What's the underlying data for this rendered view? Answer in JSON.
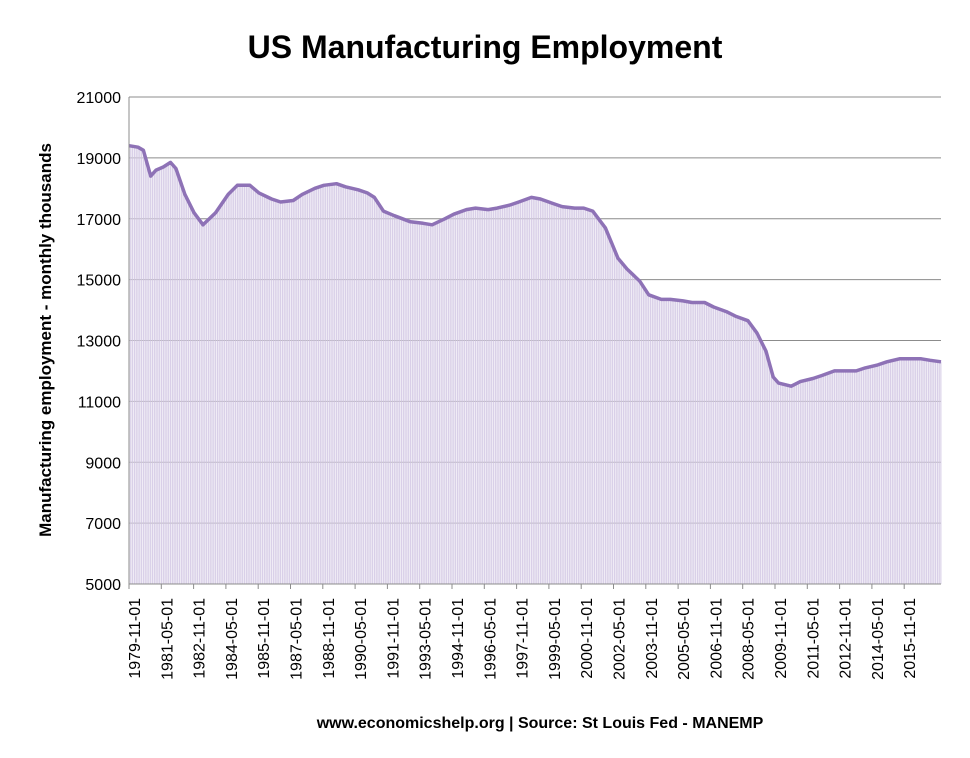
{
  "chart_data": {
    "type": "area",
    "title": "US Manufacturing Employment",
    "xlabel": "www.economicshelp.org | Source: St Louis Fed - MANEMP",
    "ylabel": "Manufacturing employment - monthly thousands",
    "ylim": [
      5000,
      21000
    ],
    "y_ticks": [
      "21000",
      "19000",
      "17000",
      "15000",
      "13000",
      "11000",
      "9000",
      "7000",
      "5000"
    ],
    "x_ticks": [
      "1979-11-01",
      "1981-05-01",
      "1982-11-01",
      "1984-05-01",
      "1985-11-01",
      "1987-05-01",
      "1988-11-01",
      "1990-05-01",
      "1991-11-01",
      "1993-05-01",
      "1994-11-01",
      "1996-05-01",
      "1997-11-01",
      "1999-05-01",
      "2000-11-01",
      "2002-05-01",
      "2003-11-01",
      "2005-05-01",
      "2006-11-01",
      "2008-05-01",
      "2009-11-01",
      "2011-05-01",
      "2012-11-01",
      "2014-05-01",
      "2015-11-01"
    ],
    "grid": true,
    "colors": {
      "line": "#8e72b6",
      "fill": "#e3dcee",
      "grid": "#8c8c8c"
    },
    "series": [
      {
        "x": [
          "1979-06",
          "1979-11",
          "1980-02",
          "1980-06",
          "1980-09",
          "1981-01",
          "1981-05",
          "1981-08",
          "1982-01",
          "1982-06",
          "1982-11",
          "1983-06",
          "1984-01",
          "1984-06",
          "1985-01",
          "1985-06",
          "1986-01",
          "1986-06",
          "1987-01",
          "1987-06",
          "1988-01",
          "1988-06",
          "1989-01",
          "1989-06",
          "1990-01",
          "1990-06",
          "1990-10",
          "1991-03",
          "1991-09",
          "1992-06",
          "1993-01",
          "1993-06",
          "1994-01",
          "1994-06",
          "1995-01",
          "1995-06",
          "1996-01",
          "1996-06",
          "1997-01",
          "1997-06",
          "1998-01",
          "1998-06",
          "1999-01",
          "1999-06",
          "2000-01",
          "2000-06",
          "2000-11",
          "2001-06",
          "2002-01",
          "2002-06",
          "2003-01",
          "2003-06",
          "2004-01",
          "2004-06",
          "2005-01",
          "2005-06",
          "2006-01",
          "2006-06",
          "2007-01",
          "2007-06",
          "2008-01",
          "2008-06",
          "2008-11",
          "2009-03",
          "2009-06",
          "2010-01",
          "2010-06",
          "2011-01",
          "2011-06",
          "2012-01",
          "2012-06",
          "2013-01",
          "2013-06",
          "2014-01",
          "2014-06",
          "2015-01",
          "2015-06",
          "2016-01",
          "2016-06",
          "2016-12"
        ],
        "values": [
          19400,
          19350,
          19250,
          18400,
          18600,
          18700,
          18850,
          18650,
          17800,
          17200,
          16800,
          17200,
          17800,
          18100,
          18100,
          17850,
          17650,
          17550,
          17600,
          17800,
          18000,
          18100,
          18150,
          18050,
          17950,
          17850,
          17700,
          17250,
          17100,
          16900,
          16850,
          16800,
          17000,
          17150,
          17300,
          17350,
          17300,
          17350,
          17450,
          17550,
          17700,
          17650,
          17500,
          17400,
          17350,
          17350,
          17250,
          16700,
          15700,
          15350,
          14950,
          14500,
          14350,
          14350,
          14300,
          14250,
          14250,
          14100,
          13950,
          13800,
          13650,
          13250,
          12650,
          11800,
          11600,
          11500,
          11650,
          11750,
          11850,
          12000,
          12000,
          12000,
          12100,
          12200,
          12300,
          12400,
          12400,
          12400,
          12350,
          12300
        ]
      }
    ]
  }
}
